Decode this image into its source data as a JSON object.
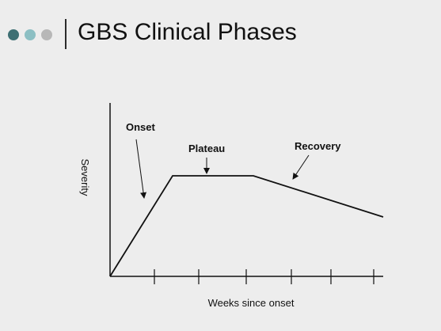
{
  "slide": {
    "title": "GBS Clinical Phases",
    "bullet_dots": [
      {
        "name": "dot-1",
        "color": "#3d6f73"
      },
      {
        "name": "dot-2",
        "color": "#8cbfc3"
      },
      {
        "name": "dot-3",
        "color": "#b7b7b7"
      }
    ]
  },
  "diagram": {
    "y_axis_label": "Severity",
    "x_axis_label": "Weeks since onset",
    "phases": {
      "onset": "Onset",
      "plateau": "Plateau",
      "recovery": "Recovery"
    },
    "x_tick_count": 6
  },
  "colors": {
    "background": "#ededed",
    "line": "#111111"
  }
}
